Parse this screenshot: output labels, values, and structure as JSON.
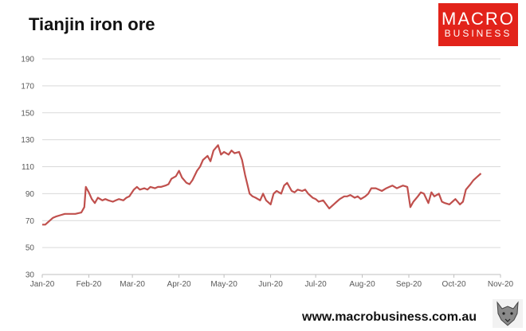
{
  "title": "Tianjin iron ore",
  "logo": {
    "line1": "MACRO",
    "line2": "BUSINESS",
    "color": "#e2231a"
  },
  "footer": "www.macrobusiness.com.au",
  "wolf_icon": "wolf-icon",
  "chart_data": {
    "type": "line",
    "title": "Tianjin iron ore",
    "xlabel": "",
    "ylabel": "",
    "ylim": [
      30,
      190
    ],
    "y_ticks": [
      30,
      50,
      70,
      90,
      110,
      130,
      150,
      170,
      190
    ],
    "x_ticks": [
      "Jan-20",
      "Feb-20",
      "Mar-20",
      "Apr-20",
      "May-20",
      "Jun-20",
      "Jul-20",
      "Aug-20",
      "Sep-20",
      "Oct-20",
      "Nov-20"
    ],
    "xlim": [
      "2020-01-01",
      "2020-11-01"
    ],
    "grid": true,
    "legend": "none",
    "series": [
      {
        "color": "#c0504d",
        "x": [
          "2020-01-01",
          "2020-01-03",
          "2020-01-06",
          "2020-01-08",
          "2020-01-10",
          "2020-01-13",
          "2020-01-16",
          "2020-01-20",
          "2020-01-23",
          "2020-01-27",
          "2020-01-29",
          "2020-01-30",
          "2020-02-01",
          "2020-02-03",
          "2020-02-05",
          "2020-02-07",
          "2020-02-10",
          "2020-02-12",
          "2020-02-14",
          "2020-02-17",
          "2020-02-19",
          "2020-02-21",
          "2020-02-24",
          "2020-02-26",
          "2020-02-28",
          "2020-03-02",
          "2020-03-04",
          "2020-03-06",
          "2020-03-09",
          "2020-03-11",
          "2020-03-13",
          "2020-03-16",
          "2020-03-18",
          "2020-03-20",
          "2020-03-23",
          "2020-03-25",
          "2020-03-27",
          "2020-03-30",
          "2020-04-01",
          "2020-04-03",
          "2020-04-06",
          "2020-04-08",
          "2020-04-10",
          "2020-04-13",
          "2020-04-15",
          "2020-04-17",
          "2020-04-20",
          "2020-04-22",
          "2020-04-24",
          "2020-04-27",
          "2020-04-29",
          "2020-05-01",
          "2020-05-04",
          "2020-05-06",
          "2020-05-08",
          "2020-05-11",
          "2020-05-13",
          "2020-05-15",
          "2020-05-18",
          "2020-05-20",
          "2020-05-22",
          "2020-05-25",
          "2020-05-27",
          "2020-05-29",
          "2020-06-01",
          "2020-06-03",
          "2020-06-05",
          "2020-06-08",
          "2020-06-10",
          "2020-06-12",
          "2020-06-15",
          "2020-06-17",
          "2020-06-19",
          "2020-06-22",
          "2020-06-24",
          "2020-06-26",
          "2020-06-29",
          "2020-07-01",
          "2020-07-03",
          "2020-07-06",
          "2020-07-08",
          "2020-07-10",
          "2020-07-13",
          "2020-07-15",
          "2020-07-17",
          "2020-07-20",
          "2020-07-22",
          "2020-07-24",
          "2020-07-27",
          "2020-07-29",
          "2020-07-31",
          "2020-08-03",
          "2020-08-05",
          "2020-08-07",
          "2020-08-10",
          "2020-08-12",
          "2020-08-14",
          "2020-08-17",
          "2020-08-19",
          "2020-08-21",
          "2020-08-24",
          "2020-08-26",
          "2020-08-28",
          "2020-08-31",
          "2020-09-02",
          "2020-09-04",
          "2020-09-07",
          "2020-09-09",
          "2020-09-11",
          "2020-09-14",
          "2020-09-16",
          "2020-09-18",
          "2020-09-21",
          "2020-09-23",
          "2020-09-25",
          "2020-09-28",
          "2020-09-30",
          "2020-10-02",
          "2020-10-05",
          "2020-10-07",
          "2020-10-09",
          "2020-10-12",
          "2020-10-14",
          "2020-10-16",
          "2020-10-19"
        ],
        "y": [
          67,
          67,
          70,
          72,
          73,
          74,
          75,
          75,
          75,
          76,
          80,
          95,
          91,
          86,
          83,
          87,
          85,
          86,
          85,
          84,
          85,
          86,
          85,
          87,
          88,
          93,
          95,
          93,
          94,
          93,
          95,
          94,
          95,
          95,
          96,
          97,
          101,
          103,
          107,
          102,
          98,
          97,
          100,
          107,
          110,
          115,
          118,
          114,
          122,
          126,
          119,
          121,
          119,
          122,
          120,
          121,
          115,
          104,
          90,
          88,
          87,
          85,
          90,
          85,
          82,
          90,
          92,
          90,
          96,
          98,
          92,
          91,
          93,
          92,
          93,
          90,
          87,
          86,
          84,
          85,
          82,
          79,
          82,
          84,
          86,
          88,
          88,
          89,
          87,
          88,
          86,
          88,
          90,
          94,
          94,
          93,
          92,
          94,
          95,
          96,
          94,
          95,
          96,
          95,
          80,
          84,
          88,
          91,
          90,
          83,
          91,
          88,
          90,
          84,
          83,
          82,
          84,
          86,
          82,
          84,
          93,
          97,
          100,
          102,
          105
        ]
      }
    ]
  }
}
